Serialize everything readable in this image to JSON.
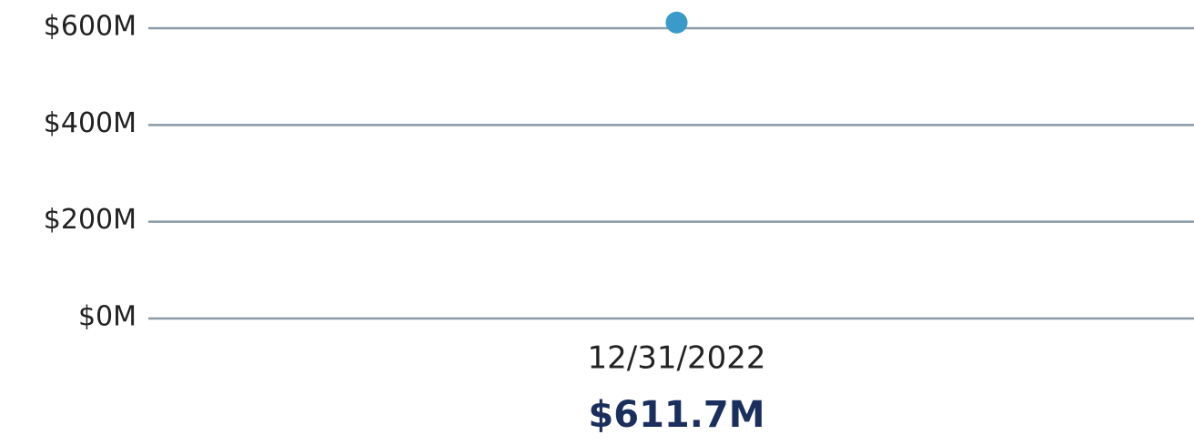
{
  "chart_data": {
    "type": "line",
    "categories": [
      "12/31/2022"
    ],
    "values": [
      611700000
    ],
    "value_labels": [
      "$611.7M"
    ],
    "color": "#3a9ac9",
    "ylim": [
      0,
      600000000
    ],
    "yticks": [
      {
        "value": 0,
        "label": "$0M"
      },
      {
        "value": 200000000,
        "label": "$200M"
      },
      {
        "value": 400000000,
        "label": "$400M"
      },
      {
        "value": 600000000,
        "label": "$600M"
      }
    ],
    "grid": true
  }
}
